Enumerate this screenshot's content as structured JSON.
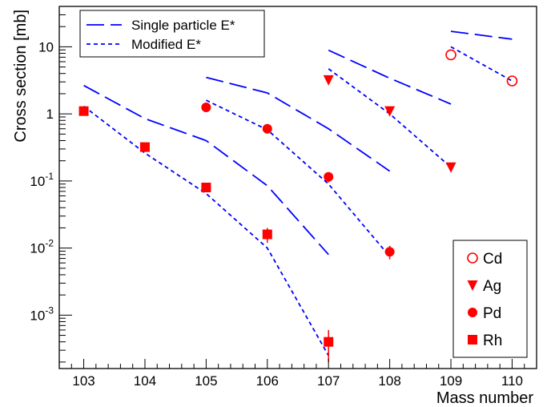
{
  "chart_data": {
    "type": "scatter",
    "xlabel": "Mass number",
    "ylabel": "Cross section [mb]",
    "xlim": [
      102.6,
      110.4
    ],
    "ylim": [
      0.00016,
      40
    ],
    "yscale": "log",
    "x_ticks": [
      {
        "value": 103,
        "label": "103"
      },
      {
        "value": 104,
        "label": "104"
      },
      {
        "value": 105,
        "label": "105"
      },
      {
        "value": 106,
        "label": "106"
      },
      {
        "value": 107,
        "label": "107"
      },
      {
        "value": 108,
        "label": "108"
      },
      {
        "value": 109,
        "label": "109"
      },
      {
        "value": 110,
        "label": "110"
      }
    ],
    "y_ticks": [
      {
        "value": 0.001,
        "base": "10",
        "exp": "-3"
      },
      {
        "value": 0.01,
        "base": "10",
        "exp": "-2"
      },
      {
        "value": 0.1,
        "base": "10",
        "exp": "-1"
      },
      {
        "value": 1,
        "base": "1",
        "exp": ""
      },
      {
        "value": 10,
        "base": "10",
        "exp": ""
      }
    ],
    "line_legend": [
      {
        "label": "Single particle E*",
        "style": "long-dash"
      },
      {
        "label": "Modified E*",
        "style": "short-dash"
      }
    ],
    "marker_legend": [
      {
        "label": "Cd",
        "marker": "open-circle"
      },
      {
        "label": "Ag",
        "marker": "triangle-down"
      },
      {
        "label": "Pd",
        "marker": "circle"
      },
      {
        "label": "Rh",
        "marker": "square"
      }
    ],
    "series": [
      {
        "name": "Rh",
        "marker": "square",
        "x": [
          103,
          104,
          105,
          106,
          107
        ],
        "y": [
          1.1,
          0.32,
          0.08,
          0.016,
          0.0004
        ],
        "err": [
          0,
          0,
          0,
          0.004,
          0.0002
        ]
      },
      {
        "name": "Pd",
        "marker": "circle",
        "x": [
          105,
          106,
          107,
          108
        ],
        "y": [
          1.25,
          0.6,
          0.115,
          0.0088
        ],
        "err": [
          0,
          0,
          0.02,
          0.002
        ]
      },
      {
        "name": "Ag",
        "marker": "triangle-down",
        "x": [
          107,
          108,
          109
        ],
        "y": [
          3.2,
          1.1,
          0.16
        ],
        "err": [
          0,
          0,
          0
        ]
      },
      {
        "name": "Cd",
        "marker": "open-circle",
        "x": [
          109,
          110
        ],
        "y": [
          7.6,
          3.1
        ],
        "err": [
          0,
          0
        ]
      }
    ],
    "curves": [
      {
        "group": "Single particle E*",
        "style": "long-dash",
        "x": [
          103,
          104,
          105,
          106,
          107
        ],
        "y": [
          2.65,
          0.85,
          0.4,
          0.085,
          0.008
        ]
      },
      {
        "group": "Single particle E*",
        "style": "long-dash",
        "x": [
          105,
          106,
          107,
          108
        ],
        "y": [
          3.5,
          2.05,
          0.6,
          0.14
        ]
      },
      {
        "group": "Single particle E*",
        "style": "long-dash",
        "x": [
          107,
          108,
          109
        ],
        "y": [
          8.9,
          3.4,
          1.4
        ]
      },
      {
        "group": "Single particle E*",
        "style": "long-dash",
        "x": [
          109,
          110
        ],
        "y": [
          17,
          13
        ]
      },
      {
        "group": "Modified E*",
        "style": "short-dash",
        "x": [
          103,
          104,
          105,
          106,
          107
        ],
        "y": [
          1.3,
          0.26,
          0.065,
          0.01,
          0.00025
        ]
      },
      {
        "group": "Modified E*",
        "style": "short-dash",
        "x": [
          105,
          106,
          107,
          108
        ],
        "y": [
          1.6,
          0.58,
          0.09,
          0.0075
        ]
      },
      {
        "group": "Modified E*",
        "style": "short-dash",
        "x": [
          107,
          108,
          109
        ],
        "y": [
          4.7,
          1.0,
          0.16
        ]
      },
      {
        "group": "Modified E*",
        "style": "short-dash",
        "x": [
          109,
          110
        ],
        "y": [
          10,
          3.1
        ]
      }
    ],
    "colors": {
      "curves": "#0000ff",
      "markers": "#ff0000",
      "axes": "#000000"
    },
    "grid": false
  }
}
